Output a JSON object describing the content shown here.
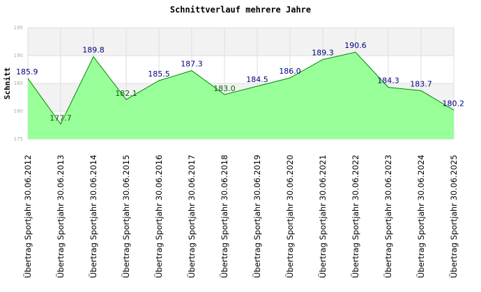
{
  "chart_data": {
    "type": "area",
    "title": "Schnittverlauf mehrere Jahre",
    "ylabel": "Schnitt",
    "xlabel": "",
    "ylim": [
      175,
      195
    ],
    "yticks": [
      175,
      180,
      185,
      190,
      195
    ],
    "grid": true,
    "categories": [
      "Übertrag Sportjahr 30.06.2012",
      "Übertrag Sportjahr 30.06.2013",
      "Übertrag Sportjahr 30.06.2014",
      "Übertrag Sportjahr 30.06.2015",
      "Übertrag Sportjahr 30.06.2016",
      "Übertrag Sportjahr 30.06.2017",
      "Übertrag Sportjahr 30.06.2018",
      "Übertrag Sportjahr 30.06.2019",
      "Übertrag Sportjahr 30.06.2020",
      "Übertrag Sportjahr 30.06.2021",
      "Übertrag Sportjahr 30.06.2022",
      "Übertrag Sportjahr 30.06.2023",
      "Übertrag Sportjahr 30.06.2024",
      "Übertrag Sportjahr 30.06.2025"
    ],
    "series": [
      {
        "name": "Schnitt",
        "values": [
          185.9,
          177.7,
          189.8,
          182.1,
          185.5,
          187.3,
          183.0,
          184.5,
          186.0,
          189.3,
          190.6,
          184.3,
          183.7,
          180.2
        ],
        "labels": [
          "185.9",
          "177.7",
          "189.8",
          "182.1",
          "185.5",
          "187.3",
          "183.0",
          "184.5",
          "186.0",
          "189.3",
          "190.6",
          "184.3",
          "183.7",
          "180.2"
        ]
      }
    ],
    "colors": {
      "fill": "#99ff99",
      "line": "#008800",
      "label_dark": "#000080",
      "label_light": "#006600",
      "band": "#f2f2f2",
      "grid": "#dddddd"
    }
  }
}
